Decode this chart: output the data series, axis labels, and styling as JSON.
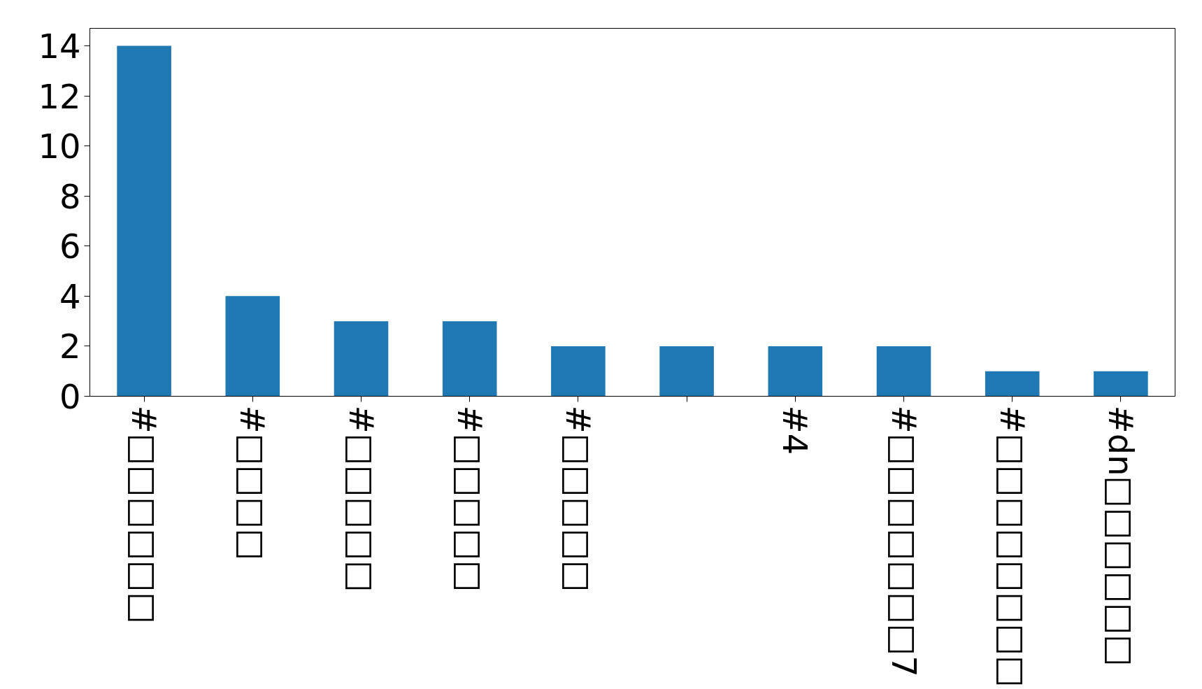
{
  "chart_data": {
    "type": "bar",
    "categories": [
      "#□□□□□□",
      "#□□□□",
      "#□□□□□",
      "#□□□□□",
      "#□□□□□",
      null,
      "#4",
      "#□□□□□□□7",
      "#□□□□□□□□",
      "#dn□□□□□□"
    ],
    "values": [
      14,
      4,
      3,
      3,
      2,
      2,
      2,
      2,
      1,
      1
    ],
    "color": "#1f77b4",
    "ylim": [
      0,
      14.7
    ],
    "yticks": [
      0,
      2,
      4,
      6,
      8,
      10,
      12,
      14
    ],
    "grid": false
  }
}
